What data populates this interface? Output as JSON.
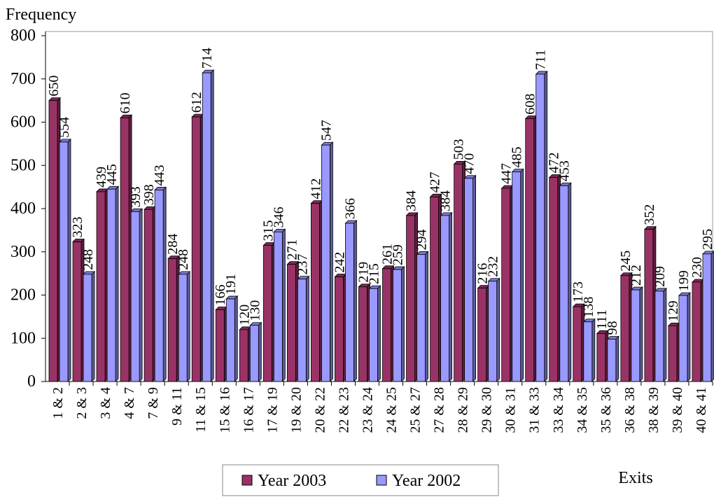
{
  "chart_data": {
    "type": "bar",
    "y_label": "Frequency",
    "x_label": "Exits",
    "categories": [
      "1 & 2",
      "2 & 3",
      "3 & 4",
      "4 & 7",
      "7 & 9",
      "9 & 11",
      "11 & 15",
      "15 & 16",
      "16 & 17",
      "17 & 19",
      "19 & 20",
      "20 & 22",
      "22 & 23",
      "23 & 24",
      "24 & 25",
      "25 & 27",
      "27 & 28",
      "28 & 29",
      "29 & 30",
      "30 & 31",
      "31 & 33",
      "33 & 34",
      "34 & 35",
      "35 & 36",
      "36 & 38",
      "38 & 39",
      "39 & 40",
      "40 & 41"
    ],
    "series": [
      {
        "name": "Year 2003",
        "color": "#993366",
        "values": [
          650,
          323,
          439,
          610,
          398,
          284,
          612,
          166,
          120,
          315,
          271,
          412,
          242,
          219,
          261,
          384,
          427,
          503,
          216,
          447,
          608,
          472,
          173,
          111,
          245,
          352,
          129,
          230
        ]
      },
      {
        "name": "Year 2002",
        "color": "#9999ff",
        "values": [
          554,
          248,
          445,
          393,
          443,
          248,
          714,
          191,
          130,
          346,
          237,
          547,
          366,
          215,
          259,
          294,
          384,
          470,
          232,
          485,
          711,
          453,
          138,
          98,
          212,
          209,
          199,
          295
        ]
      }
    ],
    "ylim": [
      0,
      800
    ],
    "yticks": [
      0,
      100,
      200,
      300,
      400,
      500,
      600,
      700,
      800
    ],
    "grid": false
  }
}
